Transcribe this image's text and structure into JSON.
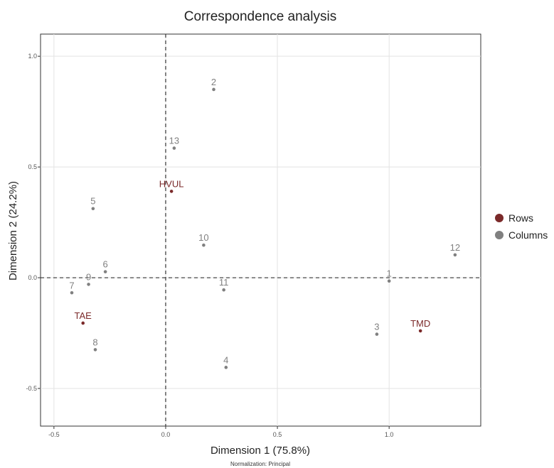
{
  "chart_data": {
    "type": "scatter",
    "title": "Correspondence analysis",
    "xlabel": "Dimension 1 (75.8%)",
    "ylabel": "Dimension 2 (24.2%)",
    "note": "Normalization: Principal",
    "xlim": [
      -0.56,
      1.41
    ],
    "ylim": [
      -0.67,
      1.1
    ],
    "xticks": [
      -0.5,
      0.0,
      0.5,
      1.0
    ],
    "xtick_labels": [
      "-0.5",
      "0.0",
      "0.5",
      "1.0"
    ],
    "yticks": [
      -0.5,
      0.0,
      0.5,
      1.0
    ],
    "ytick_labels": [
      "-0.5",
      "0.0",
      "0.5",
      "1.0"
    ],
    "grid": true,
    "legend_position": "right",
    "series": [
      {
        "name": "Rows",
        "color": "#7b2a2a",
        "points": [
          {
            "label": "HVUL",
            "x": 0.026,
            "y": 0.39
          },
          {
            "label": "TAE",
            "x": -0.37,
            "y": -0.205
          },
          {
            "label": "TMD",
            "x": 1.14,
            "y": -0.24
          }
        ]
      },
      {
        "name": "Columns",
        "color": "#808080",
        "points": [
          {
            "label": "1",
            "x": 1.0,
            "y": -0.015
          },
          {
            "label": "2",
            "x": 0.215,
            "y": 0.85
          },
          {
            "label": "3",
            "x": 0.945,
            "y": -0.255
          },
          {
            "label": "4",
            "x": 0.27,
            "y": -0.405
          },
          {
            "label": "5",
            "x": -0.325,
            "y": 0.312
          },
          {
            "label": "6",
            "x": -0.27,
            "y": 0.027
          },
          {
            "label": "7",
            "x": -0.42,
            "y": -0.068
          },
          {
            "label": "8",
            "x": -0.315,
            "y": -0.325
          },
          {
            "label": "9",
            "x": -0.345,
            "y": -0.03
          },
          {
            "label": "10",
            "x": 0.17,
            "y": 0.147
          },
          {
            "label": "11",
            "x": 0.26,
            "y": -0.055
          },
          {
            "label": "12",
            "x": 1.295,
            "y": 0.103
          },
          {
            "label": "13",
            "x": 0.038,
            "y": 0.585
          }
        ]
      }
    ]
  }
}
